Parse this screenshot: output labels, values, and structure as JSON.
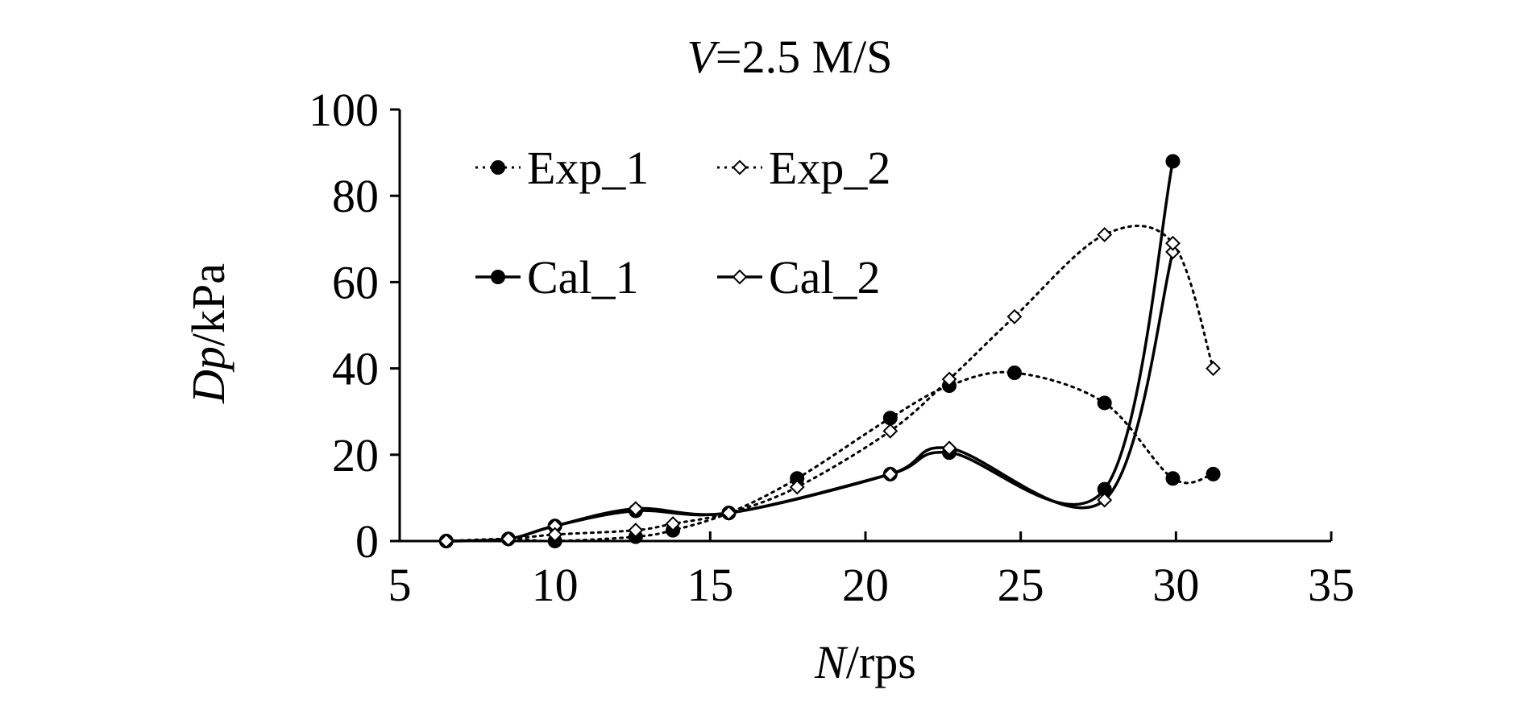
{
  "chart_data": {
    "type": "line",
    "title_italic": "V",
    "title_rest": "=2.5 M/S",
    "xlabel_italic": "N",
    "xlabel_rest": "/rps",
    "ylabel_italic": "Dp",
    "ylabel_rest": "/kPa",
    "xlim": [
      5,
      35
    ],
    "ylim": [
      0,
      100
    ],
    "xticks": [
      "5",
      "10",
      "15",
      "20",
      "25",
      "30",
      "35"
    ],
    "yticks": [
      "0",
      "20",
      "40",
      "60",
      "80",
      "100"
    ],
    "grid": false,
    "legend_position": "top-left",
    "series": [
      {
        "name": "Exp_1",
        "marker": "filled-circle",
        "line": "dotted",
        "x": [
          6.5,
          8.5,
          10.0,
          12.6,
          13.8,
          15.6,
          17.8,
          20.8,
          22.7,
          24.8,
          27.7,
          29.9,
          31.2
        ],
        "y": [
          0,
          0.5,
          0,
          1,
          2.5,
          6.5,
          14.5,
          28.5,
          36,
          39,
          32,
          14.5,
          15.5
        ]
      },
      {
        "name": "Exp_2",
        "marker": "open-diamond",
        "line": "dotted",
        "x": [
          6.5,
          8.5,
          10.0,
          12.6,
          13.8,
          15.6,
          17.8,
          20.8,
          22.7,
          24.8,
          27.7,
          29.9,
          31.2
        ],
        "y": [
          0,
          0.5,
          1.5,
          2.5,
          4,
          6.5,
          12.5,
          25.5,
          37.5,
          52,
          71,
          69,
          40
        ]
      },
      {
        "name": "Cal_1",
        "marker": "filled-circle",
        "line": "solid",
        "x": [
          6.5,
          8.5,
          10.0,
          12.6,
          15.6,
          20.8,
          22.7,
          27.7,
          29.9
        ],
        "y": [
          0,
          0.5,
          3.5,
          7,
          6.5,
          15.5,
          20.5,
          12,
          88
        ]
      },
      {
        "name": "Cal_2",
        "marker": "open-diamond",
        "line": "solid",
        "x": [
          6.5,
          8.5,
          10.0,
          12.6,
          15.6,
          20.8,
          22.7,
          27.7,
          29.9
        ],
        "y": [
          0,
          0.5,
          3.5,
          7.5,
          6.5,
          15.5,
          21.5,
          9.5,
          67
        ]
      }
    ]
  }
}
